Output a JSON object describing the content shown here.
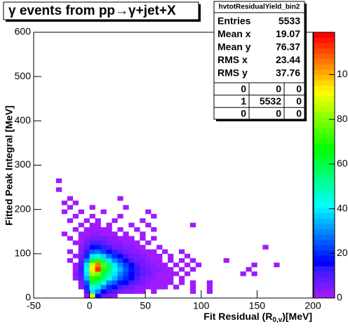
{
  "chart_data": {
    "type": "heatmap",
    "title": "γ events from pp→γ+jet+X",
    "xlabel": [
      "Fit Residual (R",
      "0,v",
      ")[MeV]"
    ],
    "ylabel": "Fitted Peak Integral [MeV]",
    "xlim": [
      -50,
      200
    ],
    "xticks": [
      -50,
      0,
      50,
      100,
      150,
      200
    ],
    "ylim": [
      0,
      600
    ],
    "yticks": [
      0,
      100,
      200,
      300,
      400,
      500,
      600
    ],
    "zlim": [
      0,
      119
    ],
    "zticks": [
      0,
      20,
      40,
      60,
      80,
      100
    ],
    "stats": {
      "name": "hvtotResidualYield_bin2",
      "rows": [
        {
          "label": "Entries",
          "value": 5533
        },
        {
          "label": "Mean x",
          "value": 19.07
        },
        {
          "label": "Mean y",
          "value": 76.37
        },
        {
          "label": "RMS x",
          "value": 23.44
        },
        {
          "label": "RMS y",
          "value": 37.76
        }
      ],
      "table": [
        [
          0,
          0,
          0
        ],
        [
          1,
          5532,
          0
        ],
        [
          0,
          0,
          0
        ]
      ]
    },
    "cells": [
      [
        -5,
        0,
        4
      ],
      [
        0,
        0,
        90
      ],
      [
        5,
        0,
        15
      ],
      [
        10,
        0,
        8
      ],
      [
        15,
        0,
        5
      ],
      [
        20,
        0,
        3
      ],
      [
        -5,
        10,
        10
      ],
      [
        0,
        10,
        40
      ],
      [
        5,
        10,
        30
      ],
      [
        10,
        10,
        15
      ],
      [
        15,
        10,
        12
      ],
      [
        20,
        10,
        10
      ],
      [
        25,
        10,
        6
      ],
      [
        30,
        10,
        4
      ],
      [
        35,
        10,
        3
      ],
      [
        40,
        10,
        2
      ],
      [
        45,
        10,
        1
      ],
      [
        55,
        10,
        1
      ],
      [
        90,
        10,
        1
      ],
      [
        105,
        10,
        1
      ],
      [
        -10,
        20,
        3
      ],
      [
        -5,
        20,
        20
      ],
      [
        0,
        20,
        45
      ],
      [
        5,
        20,
        40
      ],
      [
        10,
        20,
        30
      ],
      [
        15,
        20,
        20
      ],
      [
        20,
        20,
        15
      ],
      [
        25,
        20,
        10
      ],
      [
        30,
        20,
        8
      ],
      [
        35,
        20,
        5
      ],
      [
        40,
        20,
        4
      ],
      [
        45,
        20,
        3
      ],
      [
        50,
        20,
        2
      ],
      [
        55,
        20,
        1
      ],
      [
        60,
        20,
        1
      ],
      [
        65,
        20,
        1
      ],
      [
        75,
        20,
        1
      ],
      [
        90,
        20,
        1
      ],
      [
        105,
        20,
        1
      ],
      [
        -10,
        30,
        5
      ],
      [
        -5,
        30,
        25
      ],
      [
        0,
        30,
        60
      ],
      [
        5,
        30,
        55
      ],
      [
        10,
        30,
        45
      ],
      [
        15,
        30,
        30
      ],
      [
        20,
        30,
        25
      ],
      [
        25,
        30,
        18
      ],
      [
        30,
        30,
        15
      ],
      [
        35,
        30,
        10
      ],
      [
        40,
        30,
        8
      ],
      [
        45,
        30,
        5
      ],
      [
        50,
        30,
        3
      ],
      [
        55,
        30,
        2
      ],
      [
        60,
        30,
        2
      ],
      [
        65,
        30,
        1
      ],
      [
        70,
        30,
        1
      ],
      [
        80,
        30,
        1
      ],
      [
        90,
        30,
        1
      ],
      [
        105,
        30,
        1
      ],
      [
        -15,
        40,
        2
      ],
      [
        -10,
        40,
        8
      ],
      [
        -5,
        40,
        35
      ],
      [
        0,
        40,
        70
      ],
      [
        5,
        40,
        65
      ],
      [
        10,
        40,
        55
      ],
      [
        15,
        40,
        45
      ],
      [
        20,
        40,
        35
      ],
      [
        25,
        40,
        25
      ],
      [
        30,
        40,
        20
      ],
      [
        35,
        40,
        15
      ],
      [
        40,
        40,
        10
      ],
      [
        45,
        40,
        7
      ],
      [
        50,
        40,
        4
      ],
      [
        55,
        40,
        3
      ],
      [
        60,
        40,
        2
      ],
      [
        65,
        40,
        2
      ],
      [
        70,
        40,
        1
      ],
      [
        80,
        40,
        1
      ],
      [
        -15,
        50,
        3
      ],
      [
        -10,
        50,
        10
      ],
      [
        -5,
        50,
        40
      ],
      [
        0,
        50,
        85
      ],
      [
        5,
        50,
        80
      ],
      [
        10,
        50,
        60
      ],
      [
        15,
        50,
        50
      ],
      [
        20,
        50,
        40
      ],
      [
        25,
        50,
        30
      ],
      [
        30,
        50,
        22
      ],
      [
        35,
        50,
        15
      ],
      [
        40,
        50,
        12
      ],
      [
        45,
        50,
        8
      ],
      [
        50,
        50,
        5
      ],
      [
        55,
        50,
        3
      ],
      [
        60,
        50,
        2
      ],
      [
        65,
        50,
        1
      ],
      [
        70,
        50,
        1
      ],
      [
        75,
        50,
        1
      ],
      [
        85,
        50,
        1
      ],
      [
        135,
        50,
        1
      ],
      [
        145,
        50,
        1
      ],
      [
        -15,
        60,
        2
      ],
      [
        -10,
        60,
        12
      ],
      [
        -5,
        60,
        45
      ],
      [
        0,
        60,
        95
      ],
      [
        5,
        60,
        113
      ],
      [
        10,
        60,
        70
      ],
      [
        15,
        60,
        55
      ],
      [
        20,
        60,
        45
      ],
      [
        25,
        60,
        35
      ],
      [
        30,
        60,
        25
      ],
      [
        35,
        60,
        18
      ],
      [
        40,
        60,
        12
      ],
      [
        45,
        60,
        8
      ],
      [
        50,
        60,
        5
      ],
      [
        55,
        60,
        4
      ],
      [
        60,
        60,
        3
      ],
      [
        65,
        60,
        2
      ],
      [
        70,
        60,
        1
      ],
      [
        80,
        60,
        1
      ],
      [
        90,
        60,
        1
      ],
      [
        140,
        60,
        1
      ],
      [
        -15,
        70,
        2
      ],
      [
        -10,
        70,
        10
      ],
      [
        -5,
        70,
        40
      ],
      [
        0,
        70,
        90
      ],
      [
        5,
        70,
        105
      ],
      [
        10,
        70,
        75
      ],
      [
        15,
        70,
        55
      ],
      [
        20,
        70,
        40
      ],
      [
        25,
        70,
        30
      ],
      [
        30,
        70,
        22
      ],
      [
        35,
        70,
        15
      ],
      [
        40,
        70,
        10
      ],
      [
        45,
        70,
        7
      ],
      [
        50,
        70,
        4
      ],
      [
        55,
        70,
        3
      ],
      [
        60,
        70,
        2
      ],
      [
        65,
        70,
        1
      ],
      [
        75,
        70,
        1
      ],
      [
        85,
        70,
        1
      ],
      [
        95,
        70,
        1
      ],
      [
        145,
        70,
        1
      ],
      [
        165,
        70,
        1
      ],
      [
        -20,
        80,
        1
      ],
      [
        -10,
        80,
        8
      ],
      [
        -5,
        80,
        30
      ],
      [
        0,
        80,
        60
      ],
      [
        5,
        80,
        70
      ],
      [
        10,
        80,
        55
      ],
      [
        15,
        80,
        40
      ],
      [
        20,
        80,
        30
      ],
      [
        25,
        80,
        22
      ],
      [
        30,
        80,
        15
      ],
      [
        35,
        80,
        10
      ],
      [
        40,
        80,
        7
      ],
      [
        45,
        80,
        5
      ],
      [
        50,
        80,
        3
      ],
      [
        55,
        80,
        2
      ],
      [
        60,
        80,
        2
      ],
      [
        70,
        80,
        1
      ],
      [
        80,
        80,
        1
      ],
      [
        90,
        80,
        1
      ],
      [
        120,
        80,
        1
      ],
      [
        -15,
        90,
        2
      ],
      [
        -10,
        90,
        6
      ],
      [
        -5,
        90,
        20
      ],
      [
        0,
        90,
        40
      ],
      [
        5,
        90,
        45
      ],
      [
        10,
        90,
        38
      ],
      [
        15,
        90,
        28
      ],
      [
        20,
        90,
        20
      ],
      [
        25,
        90,
        15
      ],
      [
        30,
        90,
        10
      ],
      [
        35,
        90,
        7
      ],
      [
        40,
        90,
        5
      ],
      [
        45,
        90,
        3
      ],
      [
        50,
        90,
        2
      ],
      [
        55,
        90,
        2
      ],
      [
        60,
        90,
        1
      ],
      [
        70,
        90,
        1
      ],
      [
        85,
        90,
        1
      ],
      [
        -20,
        100,
        1
      ],
      [
        -10,
        100,
        4
      ],
      [
        -5,
        100,
        12
      ],
      [
        0,
        100,
        25
      ],
      [
        5,
        100,
        28
      ],
      [
        10,
        100,
        22
      ],
      [
        15,
        100,
        15
      ],
      [
        20,
        100,
        12
      ],
      [
        25,
        100,
        8
      ],
      [
        30,
        100,
        6
      ],
      [
        35,
        100,
        4
      ],
      [
        40,
        100,
        3
      ],
      [
        45,
        100,
        2
      ],
      [
        50,
        100,
        1
      ],
      [
        55,
        100,
        1
      ],
      [
        65,
        100,
        1
      ],
      [
        80,
        100,
        1
      ],
      [
        -10,
        110,
        3
      ],
      [
        -5,
        110,
        8
      ],
      [
        0,
        110,
        15
      ],
      [
        5,
        110,
        18
      ],
      [
        10,
        110,
        14
      ],
      [
        15,
        110,
        10
      ],
      [
        20,
        110,
        7
      ],
      [
        25,
        110,
        5
      ],
      [
        30,
        110,
        4
      ],
      [
        35,
        110,
        3
      ],
      [
        40,
        110,
        2
      ],
      [
        45,
        110,
        1
      ],
      [
        60,
        110,
        1
      ],
      [
        155,
        110,
        1
      ],
      [
        -15,
        120,
        1
      ],
      [
        -10,
        120,
        2
      ],
      [
        -5,
        120,
        5
      ],
      [
        0,
        120,
        10
      ],
      [
        5,
        120,
        10
      ],
      [
        10,
        120,
        8
      ],
      [
        15,
        120,
        6
      ],
      [
        20,
        120,
        4
      ],
      [
        25,
        120,
        3
      ],
      [
        30,
        120,
        2
      ],
      [
        35,
        120,
        2
      ],
      [
        40,
        120,
        1
      ],
      [
        50,
        120,
        1
      ],
      [
        -20,
        130,
        1
      ],
      [
        -10,
        130,
        2
      ],
      [
        -5,
        130,
        3
      ],
      [
        0,
        130,
        5
      ],
      [
        5,
        130,
        6
      ],
      [
        10,
        130,
        5
      ],
      [
        15,
        130,
        4
      ],
      [
        20,
        130,
        3
      ],
      [
        25,
        130,
        2
      ],
      [
        30,
        130,
        1
      ],
      [
        35,
        130,
        1
      ],
      [
        45,
        130,
        1
      ],
      [
        55,
        130,
        1
      ],
      [
        -25,
        140,
        1
      ],
      [
        -10,
        140,
        1
      ],
      [
        -5,
        140,
        2
      ],
      [
        0,
        140,
        3
      ],
      [
        5,
        140,
        3
      ],
      [
        10,
        140,
        2
      ],
      [
        15,
        140,
        2
      ],
      [
        20,
        140,
        1
      ],
      [
        30,
        140,
        1
      ],
      [
        45,
        140,
        1
      ],
      [
        -15,
        150,
        1
      ],
      [
        -5,
        150,
        1
      ],
      [
        0,
        150,
        2
      ],
      [
        5,
        150,
        2
      ],
      [
        10,
        150,
        1
      ],
      [
        15,
        150,
        1
      ],
      [
        25,
        150,
        1
      ],
      [
        40,
        150,
        1
      ],
      [
        55,
        150,
        1
      ],
      [
        -10,
        160,
        1
      ],
      [
        0,
        160,
        1
      ],
      [
        5,
        160,
        1
      ],
      [
        15,
        160,
        1
      ],
      [
        35,
        160,
        1
      ],
      [
        50,
        160,
        1
      ],
      [
        90,
        160,
        1
      ],
      [
        -20,
        170,
        1
      ],
      [
        -5,
        170,
        1
      ],
      [
        5,
        170,
        1
      ],
      [
        20,
        170,
        1
      ],
      [
        45,
        170,
        1
      ],
      [
        -15,
        180,
        1
      ],
      [
        0,
        180,
        1
      ],
      [
        25,
        180,
        1
      ],
      [
        55,
        180,
        1
      ],
      [
        -25,
        190,
        1
      ],
      [
        -10,
        190,
        1
      ],
      [
        10,
        190,
        1
      ],
      [
        50,
        190,
        1
      ],
      [
        -20,
        200,
        1
      ],
      [
        0,
        200,
        1
      ],
      [
        30,
        200,
        1
      ],
      [
        -25,
        210,
        1
      ],
      [
        -15,
        210,
        1
      ],
      [
        -20,
        220,
        1
      ],
      [
        25,
        220,
        1
      ],
      [
        -30,
        240,
        1
      ],
      [
        -30,
        260,
        1
      ]
    ]
  }
}
